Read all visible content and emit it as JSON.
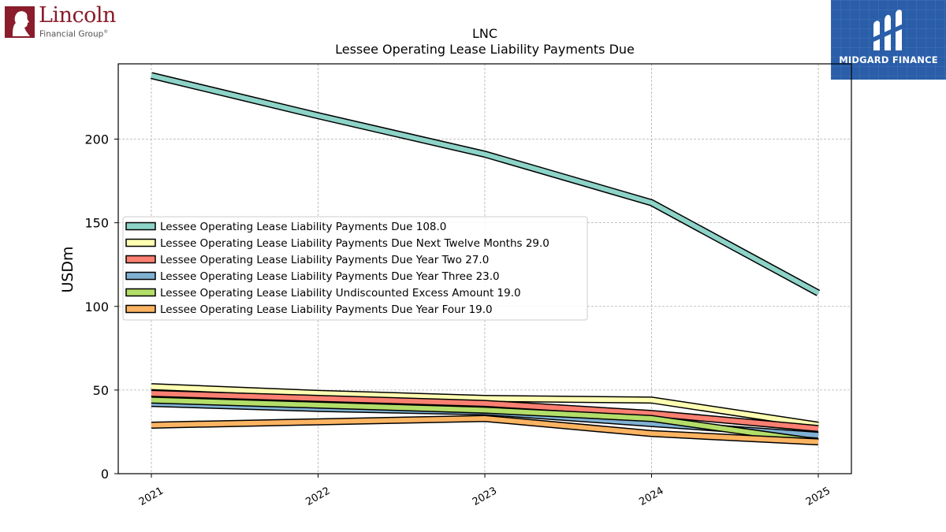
{
  "brand_left": {
    "name": "Lincoln",
    "sub": "Financial Group",
    "mark": "®"
  },
  "brand_right": {
    "name": "MIDGARD FINANCE"
  },
  "colors": {
    "lincoln": "#8a1c2b",
    "midgard": "#2a5ea9"
  },
  "chart_data": {
    "type": "line",
    "title": "LNC",
    "subtitle": "Lessee Operating Lease Liability Payments Due",
    "xlabel": "",
    "ylabel": "USDm",
    "x": [
      "2021",
      "2022",
      "2023",
      "2024",
      "2025"
    ],
    "ylim": [
      0,
      245
    ],
    "yticks": [
      0,
      50,
      100,
      150,
      200
    ],
    "grid": true,
    "legend_position": "center-left",
    "series": [
      {
        "name": "Lessee Operating Lease Liability Payments Due  108.0",
        "color": "#8dd3c7",
        "values": [
          238,
          214,
          191,
          162,
          108
        ]
      },
      {
        "name": "Lessee Operating Lease Liability Payments Due Next Twelve Months  29.0",
        "color": "#ffffb3",
        "values": [
          52,
          48,
          45,
          44,
          29
        ]
      },
      {
        "name": "Lessee Operating Lease Liability Payments Due Year Two  27.0",
        "color": "#fb8072",
        "values": [
          48,
          45,
          42,
          36,
          27
        ]
      },
      {
        "name": "Lessee Operating Lease Liability Payments Due Year Three  23.0",
        "color": "#80b1d3",
        "values": [
          42,
          39,
          37,
          30,
          23
        ]
      },
      {
        "name": "Lessee Operating Lease Liability Undiscounted Excess Amount  19.0",
        "color": "#b3de69",
        "values": [
          44,
          41,
          38,
          33,
          19
        ]
      },
      {
        "name": "Lessee Operating Lease Liability Payments Due Year Four  19.0",
        "color": "#fdb462",
        "values": [
          29,
          31,
          33,
          24,
          19
        ]
      }
    ]
  }
}
